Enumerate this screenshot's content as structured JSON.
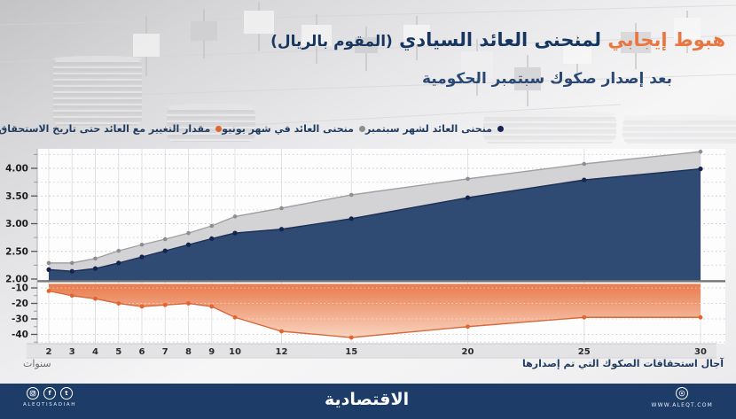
{
  "header": {
    "line1_highlight": "هبوط إيجابي",
    "line1_main": "لمنحنى العائد السيادي",
    "line1_paren": "(المقوم بالريال)",
    "line2": "بعد إصدار صكوك سبتمبر الحكومية"
  },
  "chart_data": {
    "type": "area",
    "title": "هبوط إيجابي لمنحنى العائد السيادي (المقوم بالريال) بعد إصدار صكوك سبتمبر الحكومية",
    "x": [
      2,
      3,
      4,
      5,
      6,
      7,
      8,
      9,
      10,
      12,
      15,
      20,
      25,
      30
    ],
    "x_ticks": [
      "2",
      "3",
      "4",
      "5",
      "6",
      "7",
      "8",
      "9",
      "10",
      "12",
      "15",
      "20",
      "25",
      "30"
    ],
    "series": [
      {
        "name": "منحنى العائد لشهر سبتمبر",
        "panel": "upper",
        "values": [
          2.17,
          2.14,
          2.19,
          2.29,
          2.4,
          2.51,
          2.62,
          2.73,
          2.83,
          2.9,
          3.09,
          3.47,
          3.79,
          3.99
        ],
        "fill_color": "#2f4a73",
        "line_color": "#1d2f55",
        "dot_color": "#15244e"
      },
      {
        "name": "منحنى العائد في شهر يونيو",
        "panel": "upper",
        "values": [
          2.29,
          2.29,
          2.37,
          2.51,
          2.62,
          2.72,
          2.83,
          2.96,
          3.13,
          3.28,
          3.52,
          3.81,
          4.08,
          4.3
        ],
        "fill_color": "#d3d3d5",
        "line_color": "#a1a1a3",
        "dot_color": "#8e8e90"
      },
      {
        "name": "مقدار التغيير مع العائد حتى تاريخ الاستحقاق",
        "panel": "lower",
        "values": [
          -12,
          -15,
          -17,
          -20,
          -22,
          -21,
          -20,
          -22,
          -29,
          -38,
          -42,
          -35,
          -29,
          -29
        ],
        "fill_top_color": "#e97b4e",
        "fill_bottom_color": "#f8d4bf",
        "line_color": "#d8693c",
        "dot_color": "#e1662e"
      }
    ],
    "upper_axis": {
      "ticks": [
        "4.00",
        "3.50",
        "3.00",
        "2.50",
        "2.00"
      ],
      "range": [
        2.0,
        4.45
      ],
      "unit": "%"
    },
    "lower_axis": {
      "ticks": [
        "-10",
        "-20",
        "-30",
        "-40"
      ],
      "range": [
        -7,
        -45
      ],
      "unit": "bps"
    },
    "x_label_left": "سنوات",
    "x_label_right": "آجال استحقاقات الصكوك التي تم إصدارها",
    "grid": true,
    "legend_position": "top"
  },
  "footer": {
    "brand": "الاقتصادية",
    "handle": "ALEQTISADIAH",
    "site": "WWW.ALEQT.COM"
  },
  "colors": {
    "accent_orange": "#e9763f",
    "title_navy": "#17365f",
    "footer_navy": "#1e3c68",
    "axis_band": "#e3e3e5"
  }
}
